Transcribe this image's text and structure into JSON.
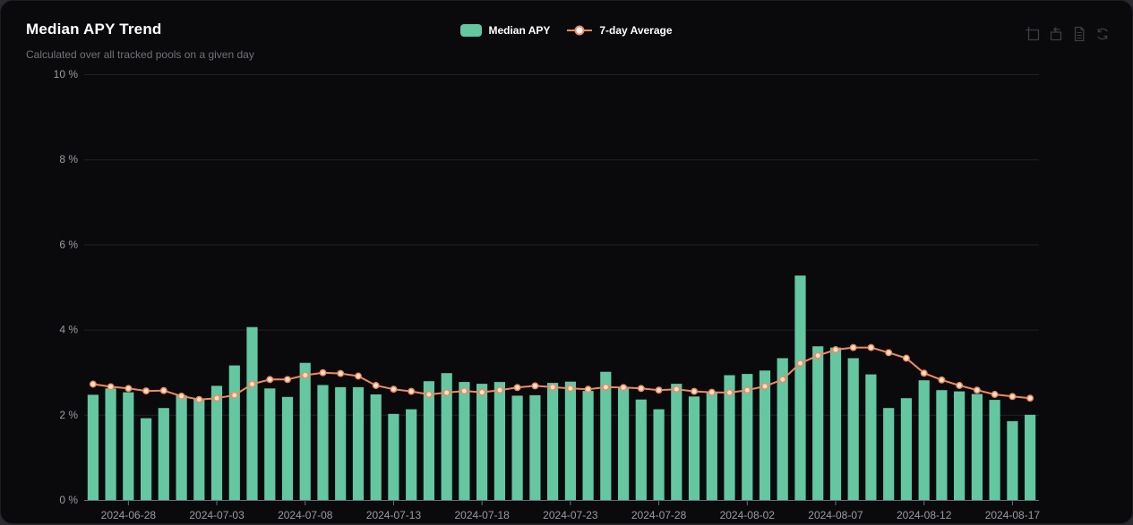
{
  "header": {
    "title": "Median APY Trend",
    "subtitle": "Calculated over all tracked pools on a given day"
  },
  "legend": [
    {
      "label": "Median APY",
      "symbol": "bar-swatch"
    },
    {
      "label": "7-day Average",
      "symbol": "line-marker"
    }
  ],
  "toolbox": [
    {
      "name": "zoom-select",
      "tooltip": "Zoom"
    },
    {
      "name": "zoom-reset",
      "tooltip": "Zoom Reset"
    },
    {
      "name": "data-view",
      "tooltip": "Data View"
    },
    {
      "name": "restore",
      "tooltip": "Restore"
    }
  ],
  "colors": {
    "bar": "#64c7a1",
    "line": "#ef8a5f",
    "marker_fill": "#ffe3d0",
    "legend_marker_fill": "#ffffff",
    "axis_label": "#9a9aa3",
    "grid_line": "#222226",
    "axis_line": "#6e7079",
    "card_bg": "#0a0a0c",
    "page_bg": "#2b2b2f",
    "title": "#ffffff",
    "subtitle": "#71717a",
    "toolbox_icon": "#3c3c42"
  },
  "chart_data": {
    "type": "bar",
    "title": "Median APY Trend",
    "subtitle": "Calculated over all tracked pools on a given day",
    "xlabel": "",
    "ylabel": "",
    "ylabel_format": "{value} %",
    "ylim": [
      0,
      10
    ],
    "yticks": [
      0,
      2,
      4,
      6,
      8,
      10
    ],
    "grid": true,
    "legend_position": "top-center",
    "x": [
      "2024-06-26",
      "2024-06-27",
      "2024-06-28",
      "2024-06-29",
      "2024-06-30",
      "2024-07-01",
      "2024-07-02",
      "2024-07-03",
      "2024-07-04",
      "2024-07-05",
      "2024-07-06",
      "2024-07-07",
      "2024-07-08",
      "2024-07-09",
      "2024-07-10",
      "2024-07-11",
      "2024-07-12",
      "2024-07-13",
      "2024-07-14",
      "2024-07-15",
      "2024-07-16",
      "2024-07-17",
      "2024-07-18",
      "2024-07-19",
      "2024-07-20",
      "2024-07-21",
      "2024-07-22",
      "2024-07-23",
      "2024-07-24",
      "2024-07-25",
      "2024-07-26",
      "2024-07-27",
      "2024-07-28",
      "2024-07-29",
      "2024-07-30",
      "2024-07-31",
      "2024-08-01",
      "2024-08-02",
      "2024-08-03",
      "2024-08-04",
      "2024-08-05",
      "2024-08-06",
      "2024-08-07",
      "2024-08-08",
      "2024-08-09",
      "2024-08-10",
      "2024-08-11",
      "2024-08-12",
      "2024-08-13",
      "2024-08-14",
      "2024-08-15",
      "2024-08-16",
      "2024-08-17",
      "2024-08-18"
    ],
    "xtick_labels": [
      "2024-06-28",
      "2024-07-03",
      "2024-07-08",
      "2024-07-13",
      "2024-07-18",
      "2024-07-23",
      "2024-07-28",
      "2024-08-02",
      "2024-08-07",
      "2024-08-12",
      "2024-08-17"
    ],
    "series": [
      {
        "name": "Median APY",
        "type": "bar",
        "values": [
          2.47,
          2.62,
          2.53,
          1.92,
          2.16,
          2.46,
          2.37,
          2.68,
          3.16,
          4.06,
          2.62,
          2.42,
          3.22,
          2.7,
          2.65,
          2.65,
          2.48,
          2.02,
          2.13,
          2.79,
          2.98,
          2.77,
          2.73,
          2.77,
          2.45,
          2.46,
          2.75,
          2.78,
          2.56,
          3.01,
          2.65,
          2.36,
          2.13,
          2.73,
          2.43,
          2.53,
          2.93,
          2.96,
          3.04,
          3.33,
          5.27,
          3.61,
          3.58,
          3.33,
          2.95,
          2.16,
          2.39,
          2.81,
          2.58,
          2.55,
          2.49,
          2.35,
          1.85,
          2.0
        ]
      },
      {
        "name": "7-day Average",
        "type": "line",
        "values": [
          2.72,
          2.66,
          2.62,
          2.56,
          2.57,
          2.44,
          2.36,
          2.39,
          2.46,
          2.72,
          2.83,
          2.83,
          2.93,
          2.99,
          2.97,
          2.91,
          2.69,
          2.6,
          2.55,
          2.48,
          2.52,
          2.56,
          2.53,
          2.58,
          2.64,
          2.68,
          2.65,
          2.62,
          2.6,
          2.65,
          2.64,
          2.62,
          2.58,
          2.6,
          2.55,
          2.53,
          2.52,
          2.58,
          2.67,
          2.83,
          3.21,
          3.39,
          3.53,
          3.58,
          3.58,
          3.46,
          3.33,
          2.98,
          2.82,
          2.69,
          2.58,
          2.48,
          2.43,
          2.39
        ]
      }
    ]
  }
}
